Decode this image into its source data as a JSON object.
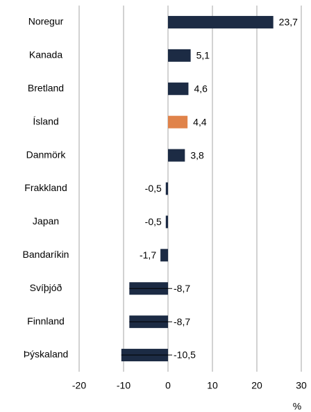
{
  "chart_data": {
    "type": "bar",
    "orientation": "horizontal",
    "categories": [
      "Noregur",
      "Kanada",
      "Bretland",
      "Ísland",
      "Danmörk",
      "Frakkland",
      "Japan",
      "Bandaríkin",
      "Svíþjóð",
      "Finnland",
      "Þýskaland"
    ],
    "values": [
      23.7,
      5.1,
      4.6,
      4.4,
      3.8,
      -0.5,
      -0.5,
      -1.7,
      -8.7,
      -8.7,
      -10.5
    ],
    "value_labels": [
      "23,7",
      "5,1",
      "4,6",
      "4,4",
      "3,8",
      "-0,5",
      "-0,5",
      "-1,7",
      "-8,7",
      "-8,7",
      "-10,5"
    ],
    "colors": [
      "#1c2b44",
      "#1c2b44",
      "#1c2b44",
      "#e0834a",
      "#1c2b44",
      "#1c2b44",
      "#1c2b44",
      "#1c2b44",
      "#1c2b44",
      "#1c2b44",
      "#1c2b44"
    ],
    "x_label": "%",
    "xlim": [
      -20,
      30
    ],
    "xticks": [
      -20,
      -10,
      0,
      10,
      20,
      30
    ],
    "grid": true
  }
}
